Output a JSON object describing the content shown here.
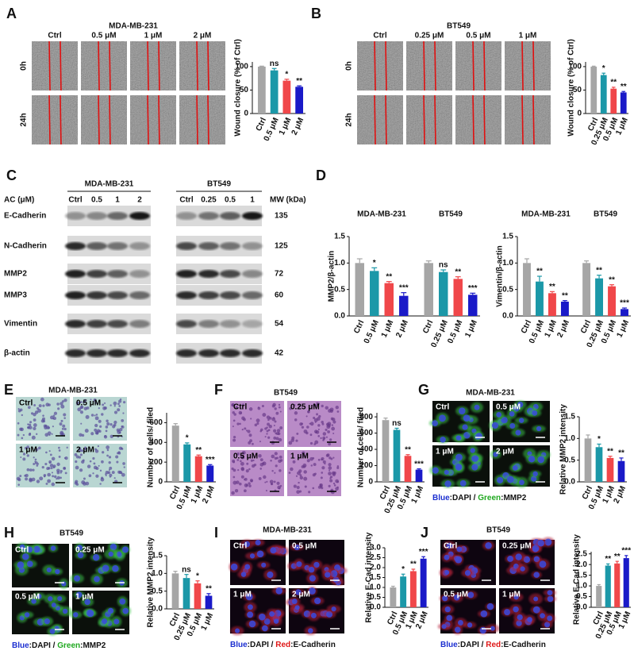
{
  "panels": [
    {
      "letter": "A",
      "title": "MDA-MB-231",
      "conditions": [
        "Ctrl",
        "0.5 μM",
        "1 μM",
        "2 μM"
      ],
      "rows": [
        "0h",
        "24h"
      ]
    },
    {
      "letter": "B",
      "title": "BT549",
      "conditions": [
        "Ctrl",
        "0.25 μM",
        "0.5 μM",
        "1 μM"
      ],
      "rows": [
        "0h",
        "24h"
      ]
    },
    {
      "letter": "C",
      "dose_label": "AC (μM)",
      "mw_label": "MW (kDa)",
      "groups": [
        {
          "title": "MDA-MB-231",
          "lanes": [
            "Ctrl",
            "0.5",
            "1",
            "2"
          ]
        },
        {
          "title": "BT549",
          "lanes": [
            "Ctrl",
            "0.25",
            "0.5",
            "1"
          ]
        }
      ],
      "proteins": [
        {
          "name": "E-Cadherin",
          "mw": 135
        },
        {
          "name": "N-Cadherin",
          "mw": 125
        },
        {
          "name": "MMP2",
          "mw": 72
        },
        {
          "name": "MMP3",
          "mw": 60
        },
        {
          "name": "Vimentin",
          "mw": 54
        },
        {
          "name": "β-actin",
          "mw": 42
        }
      ]
    },
    {
      "letter": "D"
    },
    {
      "letter": "E",
      "title": "MDA-MB-231",
      "conditions": [
        "Ctrl",
        "0.5 μM",
        "1 μM",
        "2 μM"
      ]
    },
    {
      "letter": "F",
      "title": "BT549",
      "conditions": [
        "Ctrl",
        "0.25 μM",
        "0.5 μM",
        "1 μM"
      ]
    },
    {
      "letter": "G",
      "title": "MDA-MB-231",
      "conditions": [
        "Ctrl",
        "0.5 μM",
        "1 μM",
        "2 μM"
      ],
      "stain": [
        {
          "text": "Blue",
          "color": "#1c2fd0"
        },
        {
          "text": ":DAPI / "
        },
        {
          "text": "Green",
          "color": "#1fa81f"
        },
        {
          "text": ":MMP2"
        }
      ]
    },
    {
      "letter": "H",
      "title": "BT549",
      "conditions": [
        "Ctrl",
        "0.25 μM",
        "0.5 μM",
        "1 μM"
      ],
      "stain": [
        {
          "text": "Blue",
          "color": "#1c2fd0"
        },
        {
          "text": ":DAPI / "
        },
        {
          "text": "Green",
          "color": "#1fa81f"
        },
        {
          "text": ":MMP2"
        }
      ]
    },
    {
      "letter": "I",
      "title": "MDA-MB-231",
      "conditions": [
        "Ctrl",
        "0.5 μM",
        "1 μM",
        "2 μM"
      ],
      "stain": [
        {
          "text": "Blue",
          "color": "#1c2fd0"
        },
        {
          "text": ":DAPI / "
        },
        {
          "text": "Red",
          "color": "#e01818"
        },
        {
          "text": ":E-Cadherin"
        }
      ]
    },
    {
      "letter": "J",
      "title": "BT549",
      "conditions": [
        "Ctrl",
        "0.25 μM",
        "0.5 μM",
        "1 μM"
      ],
      "stain": [
        {
          "text": "Blue",
          "color": "#1c2fd0"
        },
        {
          "text": ":DAPI / "
        },
        {
          "text": "Red",
          "color": "#e01818"
        },
        {
          "text": ":E-Cadherin"
        }
      ]
    }
  ],
  "chart_data": [
    {
      "type": "bar",
      "ylabel": "Wound closure (% of Ctrl)",
      "categories": [
        "Ctrl",
        "0.5 μM",
        "1 μM",
        "2 μM"
      ],
      "values": [
        100,
        92,
        70,
        57
      ],
      "errors": [
        1,
        4,
        3,
        2
      ],
      "significance": [
        null,
        "ns",
        "*",
        "**"
      ],
      "colors": [
        "#a6a6a6",
        "#1b98a8",
        "#f0474a",
        "#1a1ac8"
      ],
      "ylim": [
        0,
        110
      ],
      "yticks": [
        0,
        50,
        100
      ]
    },
    {
      "type": "bar",
      "ylabel": "Wound closure (% of Ctrl)",
      "categories": [
        "Ctrl",
        "0.25 μM",
        "0.5 μM",
        "1 μM"
      ],
      "values": [
        100,
        82,
        53,
        45
      ],
      "errors": [
        1,
        4,
        3,
        2
      ],
      "significance": [
        null,
        "*",
        "**",
        "**"
      ],
      "colors": [
        "#a6a6a6",
        "#1b98a8",
        "#f0474a",
        "#1a1ac8"
      ],
      "ylim": [
        0,
        110
      ],
      "yticks": [
        0,
        50,
        100
      ]
    },
    {
      "type": "bar",
      "ylabel": "MMP2/β-actin",
      "colors": [
        "#a6a6a6",
        "#1b98a8",
        "#f0474a",
        "#1a1ac8"
      ],
      "ylim": [
        0,
        1.5
      ],
      "yticks": [
        {
          "value": 0,
          "label": "0.0"
        },
        0.5,
        {
          "value": 1,
          "label": "1.0"
        },
        1.5
      ],
      "groups": [
        {
          "label": "MDA-MB-231",
          "categories": [
            "Ctrl",
            "0.5 μM",
            "1 μM",
            "2 μM"
          ],
          "values": [
            1.0,
            0.85,
            0.62,
            0.38
          ],
          "errors": [
            0.08,
            0.06,
            0.03,
            0.06
          ],
          "significance": [
            null,
            "*",
            "**",
            "***"
          ]
        },
        {
          "label": "BT549",
          "categories": [
            "Ctrl",
            "0.25 μM",
            "0.5 μM",
            "1 μM"
          ],
          "values": [
            1.0,
            0.83,
            0.7,
            0.4
          ],
          "errors": [
            0.04,
            0.04,
            0.04,
            0.03
          ],
          "significance": [
            null,
            "ns",
            "**",
            "***"
          ]
        }
      ]
    },
    {
      "type": "bar",
      "ylabel": "Vimentin/β-actin",
      "colors": [
        "#a6a6a6",
        "#1b98a8",
        "#f0474a",
        "#1a1ac8"
      ],
      "ylim": [
        0,
        1.5
      ],
      "yticks": [
        {
          "value": 0,
          "label": "0.0"
        },
        0.5,
        {
          "value": 1,
          "label": "1.0"
        },
        1.5
      ],
      "groups": [
        {
          "label": "MDA-MB-231",
          "categories": [
            "Ctrl",
            "0.5 μM",
            "1 μM",
            "2 μM"
          ],
          "values": [
            1.0,
            0.65,
            0.43,
            0.27
          ],
          "errors": [
            0.08,
            0.1,
            0.03,
            0.02
          ],
          "significance": [
            null,
            "**",
            "**",
            "**"
          ]
        },
        {
          "label": "BT549",
          "categories": [
            "Ctrl",
            "0.25 μM",
            "0.5 μM",
            "1 μM"
          ],
          "values": [
            1.0,
            0.71,
            0.56,
            0.13
          ],
          "errors": [
            0.04,
            0.06,
            0.03,
            0.02
          ],
          "significance": [
            null,
            "**",
            "**",
            "***"
          ]
        }
      ]
    },
    {
      "type": "bar",
      "ylabel": "Number of cells/ filed",
      "categories": [
        "Ctrl",
        "0.5 μM",
        "1 μM",
        "2 μM"
      ],
      "values": [
        570,
        380,
        260,
        165
      ],
      "errors": [
        20,
        15,
        12,
        10
      ],
      "significance": [
        null,
        "*",
        "**",
        "***"
      ],
      "colors": [
        "#a6a6a6",
        "#1b98a8",
        "#f0474a",
        "#1a1ac8"
      ],
      "ylim": [
        0,
        700
      ],
      "yticks": [
        0,
        200,
        400,
        600
      ]
    },
    {
      "type": "bar",
      "ylabel": "Number of cells/ filed",
      "categories": [
        "Ctrl",
        "0.25 μM",
        "0.5 μM",
        "1 μM"
      ],
      "values": [
        760,
        640,
        320,
        150
      ],
      "errors": [
        25,
        20,
        15,
        10
      ],
      "significance": [
        null,
        "ns",
        "**",
        "***"
      ],
      "colors": [
        "#a6a6a6",
        "#1b98a8",
        "#f0474a",
        "#1a1ac8"
      ],
      "ylim": [
        0,
        850
      ],
      "yticks": [
        0,
        200,
        400,
        600,
        800
      ]
    },
    {
      "type": "bar",
      "ylabel": "Relative MMP2 intensity",
      "categories": [
        "Ctrl",
        "0.5 μM",
        "1 μM",
        "2 μM"
      ],
      "values": [
        1.0,
        0.8,
        0.55,
        0.48
      ],
      "errors": [
        0.08,
        0.07,
        0.04,
        0.07
      ],
      "significance": [
        null,
        "*",
        "**",
        "**"
      ],
      "colors": [
        "#a6a6a6",
        "#1b98a8",
        "#f0474a",
        "#1a1ac8"
      ],
      "ylim": [
        0,
        1.5
      ],
      "yticks": [
        {
          "value": 0,
          "label": "0.0"
        },
        0.5,
        {
          "value": 1,
          "label": "1.0"
        },
        1.5
      ]
    },
    {
      "type": "bar",
      "ylabel": "Relative MMP2 intensity",
      "categories": [
        "Ctrl",
        "0.25 μM",
        "0.5 μM",
        "1 μM"
      ],
      "values": [
        1.0,
        0.87,
        0.72,
        0.37
      ],
      "errors": [
        0.06,
        0.1,
        0.07,
        0.06
      ],
      "significance": [
        null,
        "ns",
        "*",
        "**"
      ],
      "colors": [
        "#a6a6a6",
        "#1b98a8",
        "#f0474a",
        "#1a1ac8"
      ],
      "ylim": [
        0,
        1.5
      ],
      "yticks": [
        {
          "value": 0,
          "label": "0.0"
        },
        0.5,
        {
          "value": 1,
          "label": "1.0"
        },
        1.5
      ]
    },
    {
      "type": "bar",
      "ylabel": "Relative E-Cad intensity",
      "categories": [
        "Ctrl",
        "0.5 μM",
        "1 μM",
        "2 μM"
      ],
      "values": [
        1.0,
        1.55,
        1.82,
        2.45
      ],
      "errors": [
        0.06,
        0.12,
        0.1,
        0.1
      ],
      "significance": [
        null,
        "*",
        "**",
        "***"
      ],
      "colors": [
        "#a6a6a6",
        "#1b98a8",
        "#f0474a",
        "#1a1ac8"
      ],
      "ylim": [
        0,
        3
      ],
      "yticks": [
        {
          "value": 0,
          "label": "0.0"
        },
        0.5,
        {
          "value": 1,
          "label": "1.0"
        },
        1.5,
        {
          "value": 2,
          "label": "2.0"
        },
        2.5,
        {
          "value": 3,
          "label": "3.0"
        }
      ]
    },
    {
      "type": "bar",
      "ylabel": "Relative E-Cad intensity",
      "categories": [
        "Ctrl",
        "0.25 μM",
        "0.5 μM",
        "1 μM"
      ],
      "values": [
        1.0,
        1.95,
        2.05,
        2.3
      ],
      "errors": [
        0.06,
        0.08,
        0.1,
        0.12
      ],
      "significance": [
        null,
        "**",
        "**",
        "***"
      ],
      "colors": [
        "#a6a6a6",
        "#1b98a8",
        "#f0474a",
        "#1a1ac8"
      ],
      "ylim": [
        0,
        2.6
      ],
      "yticks": [
        {
          "value": 0,
          "label": "0.0"
        },
        0.5,
        {
          "value": 1,
          "label": "1.0"
        },
        1.5,
        {
          "value": 2,
          "label": "2.0"
        },
        2.5
      ]
    }
  ]
}
